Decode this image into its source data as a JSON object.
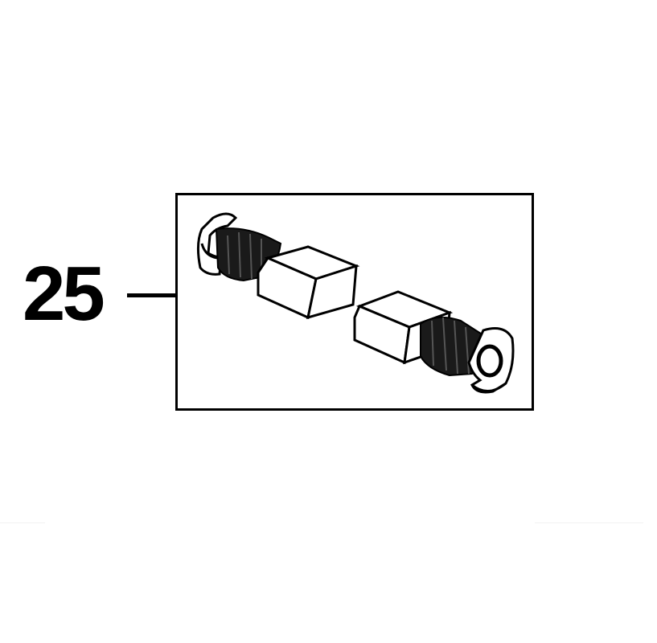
{
  "diagram": {
    "part_number": "25",
    "parts": [
      {
        "icon": "carbon-brush-icon"
      },
      {
        "icon": "carbon-brush-icon"
      }
    ],
    "colors": {
      "line": "#000000",
      "background": "#ffffff",
      "fill_dark": "#1a1a1a"
    }
  }
}
